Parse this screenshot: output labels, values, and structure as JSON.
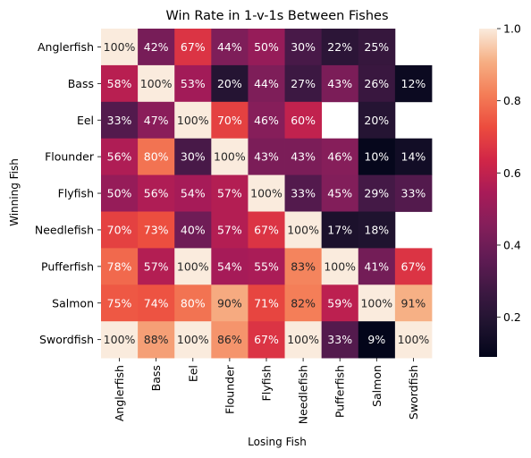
{
  "chart_data": {
    "type": "heatmap",
    "title": "Win Rate in 1-v-1s Between Fishes",
    "xlabel": "Losing Fish",
    "ylabel": "Winning Fish",
    "rows": [
      "Anglerfish",
      "Bass",
      "Eel",
      "Flounder",
      "Flyfish",
      "Needlefish",
      "Pufferfish",
      "Salmon",
      "Swordfish"
    ],
    "columns": [
      "Anglerfish",
      "Bass",
      "Eel",
      "Flounder",
      "Flyfish",
      "Needlefish",
      "Pufferfish",
      "Salmon",
      "Swordfish"
    ],
    "values": [
      [
        1.0,
        0.42,
        0.67,
        0.44,
        0.5,
        0.3,
        0.22,
        0.25,
        null
      ],
      [
        0.58,
        1.0,
        0.53,
        0.2,
        0.44,
        0.27,
        0.43,
        0.26,
        0.12
      ],
      [
        0.33,
        0.47,
        1.0,
        0.7,
        0.46,
        0.6,
        null,
        0.2,
        null
      ],
      [
        0.56,
        0.8,
        0.3,
        1.0,
        0.43,
        0.43,
        0.46,
        0.1,
        0.14
      ],
      [
        0.5,
        0.56,
        0.54,
        0.57,
        1.0,
        0.33,
        0.45,
        0.29,
        0.33
      ],
      [
        0.7,
        0.73,
        0.4,
        0.57,
        0.67,
        1.0,
        0.17,
        0.18,
        null
      ],
      [
        0.78,
        0.57,
        1.0,
        0.54,
        0.55,
        0.83,
        1.0,
        0.41,
        0.67
      ],
      [
        0.75,
        0.74,
        0.8,
        0.9,
        0.71,
        0.82,
        0.59,
        1.0,
        0.91
      ],
      [
        1.0,
        0.88,
        1.0,
        0.86,
        0.67,
        1.0,
        0.33,
        0.09,
        1.0
      ]
    ],
    "value_format": "percent",
    "colormap": "rocket",
    "colorbar": {
      "range": [
        0.09,
        1.0
      ],
      "ticks": [
        0.2,
        0.4,
        0.6,
        0.8,
        1.0
      ],
      "tick_labels": [
        "0.2",
        "0.4",
        "0.6",
        "0.8",
        "1.0"
      ]
    },
    "grid": false
  }
}
